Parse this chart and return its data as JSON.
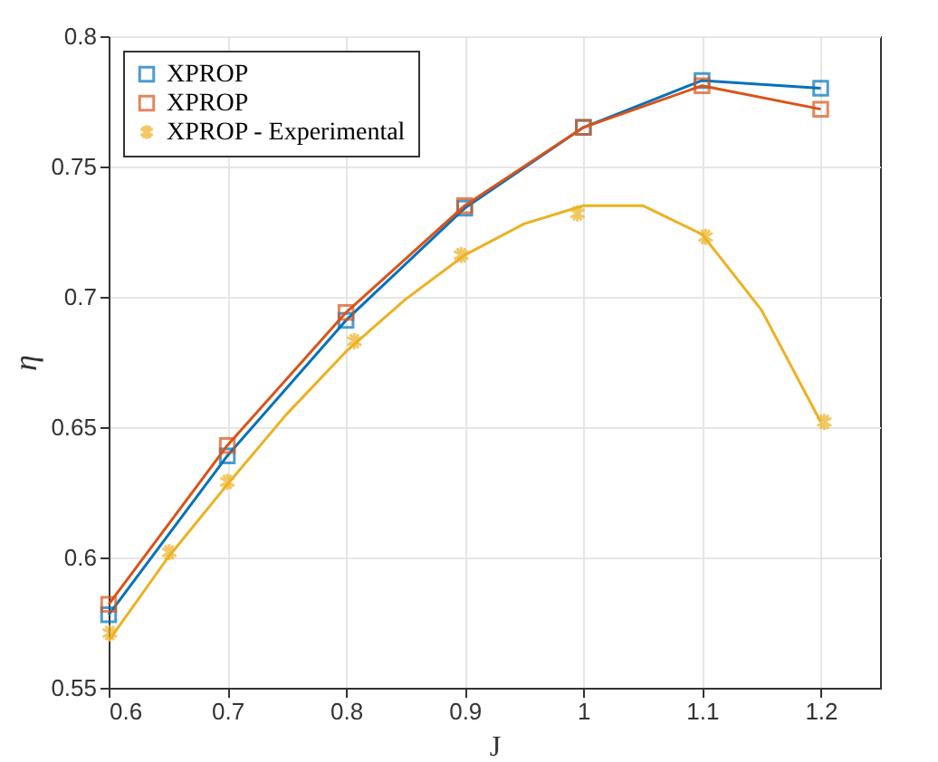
{
  "chart_data": {
    "type": "line",
    "xlabel": "J",
    "ylabel": "η",
    "xlim": [
      0.6,
      1.25
    ],
    "ylim": [
      0.55,
      0.8
    ],
    "xticks": [
      0.6,
      0.7,
      0.8,
      0.9,
      1,
      1.1,
      1.2
    ],
    "yticks": [
      0.55,
      0.6,
      0.65,
      0.7,
      0.75,
      0.8
    ],
    "grid": true,
    "legend": "top left",
    "series": [
      {
        "name": "XPROP",
        "marker": "square",
        "color": "#0072bd",
        "x": [
          0.6,
          0.7,
          0.8,
          0.9,
          1.0,
          1.1,
          1.2
        ],
        "values": [
          0.578,
          0.639,
          0.691,
          0.734,
          0.765,
          0.783,
          0.78
        ]
      },
      {
        "name": "XPROP",
        "marker": "square",
        "color": "#d95319",
        "x": [
          0.6,
          0.7,
          0.8,
          0.9,
          1.0,
          1.1,
          1.2
        ],
        "values": [
          0.582,
          0.643,
          0.694,
          0.735,
          0.765,
          0.781,
          0.772
        ]
      },
      {
        "name": "XPROP - Experimental",
        "type": "scatter",
        "marker": "cross",
        "color": "#edb120",
        "x": [
          0.601,
          0.651,
          0.7,
          0.807,
          0.897,
          0.995,
          1.103,
          1.203
        ],
        "values": [
          0.571,
          0.602,
          0.629,
          0.683,
          0.716,
          0.732,
          0.723,
          0.652
        ]
      },
      {
        "marker": "none",
        "color": "#edb120",
        "x": [
          0.6,
          0.65,
          0.7,
          0.75,
          0.8,
          0.85,
          0.9,
          0.95,
          1.0,
          1.05,
          1.1,
          1.15,
          1.2
        ],
        "values": [
          0.568,
          0.6,
          0.628,
          0.655,
          0.679,
          0.699,
          0.716,
          0.728,
          0.735,
          0.735,
          0.724,
          0.695,
          0.652
        ]
      }
    ]
  }
}
